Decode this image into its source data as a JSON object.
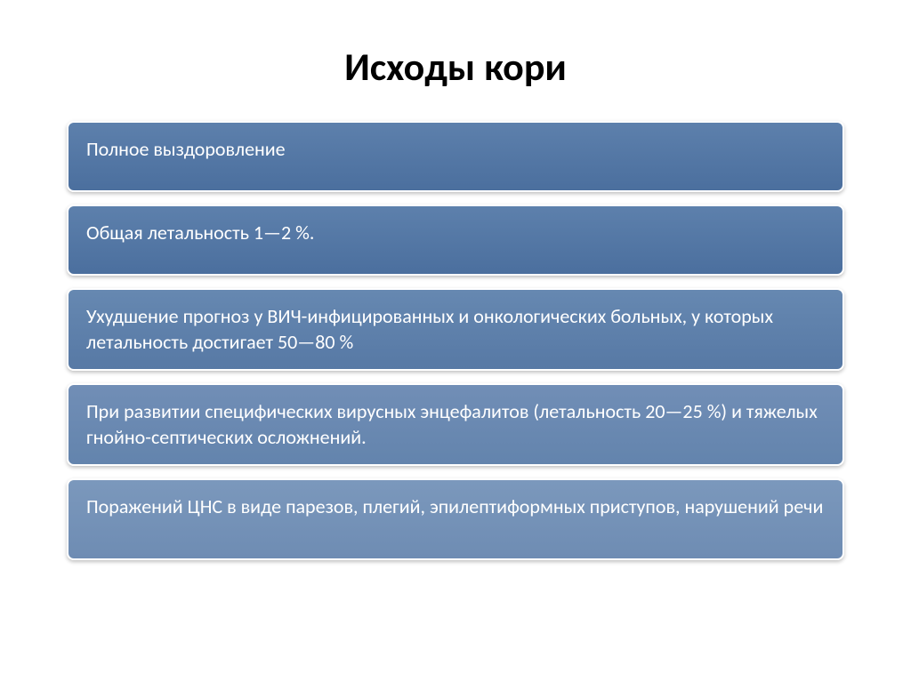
{
  "title": "Исходы кори",
  "title_fontsize": 44,
  "title_color": "#000000",
  "background": "#ffffff",
  "block_border_color": "#ffffff",
  "block_border_radius": 8,
  "block_fontsize": 22,
  "blocks": [
    {
      "text": "Полное выздоровление",
      "bg_top": "#5d80ac",
      "bg_bottom": "#4b6f9e",
      "text_color": "#ffffff",
      "min_height": 80
    },
    {
      "text": "Общая летальность  1—2 %.",
      "bg_top": "#5d80ac",
      "bg_bottom": "#4b6f9e",
      "text_color": "#ffffff",
      "min_height": 80
    },
    {
      "text": "Ухудшение прогноз у ВИЧ-инфицированных и онкологических больных, у которых летальность достигает 50—80 %",
      "bg_top": "#6688b1",
      "bg_bottom": "#5779a5",
      "text_color": "#ffffff",
      "min_height": 92
    },
    {
      "text": "При развитии специфических вирусных энцефалитов (летальность 20—25 %) и тяжелых гнойно-септических осложнений.",
      "bg_top": "#718eb6",
      "bg_bottom": "#6384ad",
      "text_color": "#ffffff",
      "min_height": 92
    },
    {
      "text": "Поражений ЦНС в виде парезов, плегий, эпилептиформных приступов, нарушений речи",
      "bg_top": "#7b98bc",
      "bg_bottom": "#6e8cb3",
      "text_color": "#ffffff",
      "min_height": 92
    }
  ]
}
